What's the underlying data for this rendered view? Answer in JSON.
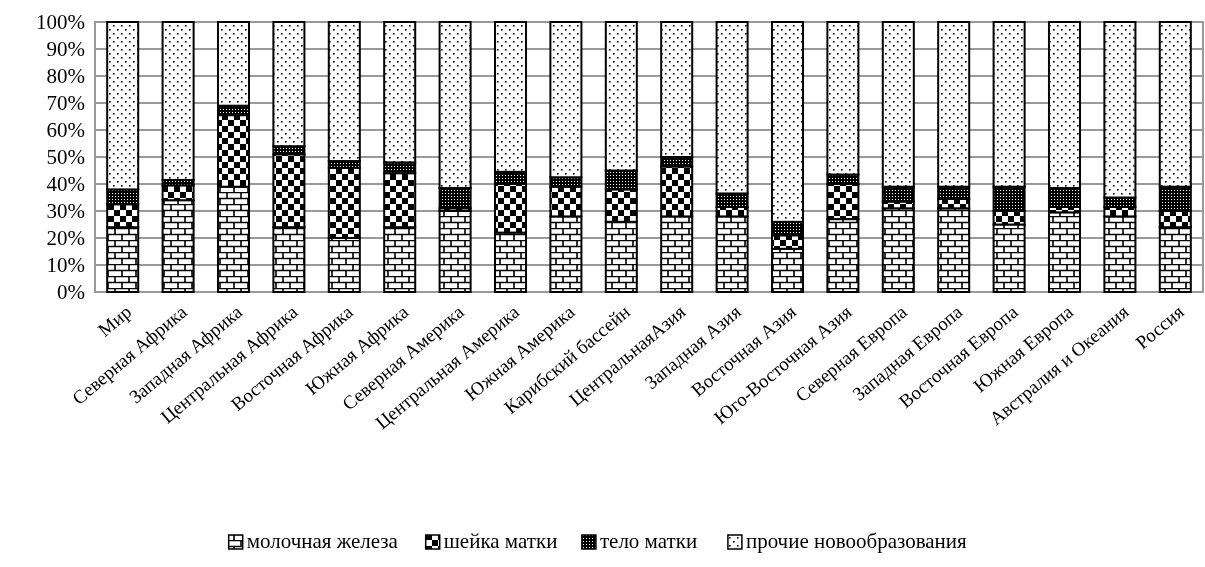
{
  "chart_data": {
    "type": "bar",
    "stacked": true,
    "categories": [
      "Мир",
      "Северная Африка",
      "Западная Африка",
      "Центральная Африка",
      "Восточная Африка",
      "Южная Африка",
      "Северная Америка",
      "Центральная Америка",
      "Южная Америка",
      "Карибский бассейн",
      "ЦентральнаяАзия",
      "Западная Азия",
      "Восточная Азия",
      "Юго-Восточная Азия",
      "Северная Европа",
      "Западная Европа",
      "Восточная Европа",
      "Южная Европа",
      "Австралия и Океания",
      "Россия"
    ],
    "series": [
      {
        "name": "молочная железа",
        "color": "#000000",
        "values": [
          24,
          34,
          39,
          24,
          20,
          24,
          30,
          22,
          28,
          26,
          28,
          28,
          16,
          27,
          31,
          31,
          25,
          29.5,
          28,
          24
        ]
      },
      {
        "name": "шейка матки",
        "color": "#000000",
        "values": [
          8.5,
          5.5,
          26.5,
          27,
          26,
          20,
          1,
          18,
          11,
          12,
          18.5,
          3.5,
          5,
          13,
          2.5,
          3.5,
          5,
          2,
          3.5,
          6
        ]
      },
      {
        "name": "тело матки",
        "color": "#000000",
        "values": [
          5.5,
          2,
          3.5,
          3,
          2.5,
          4,
          7.5,
          4.5,
          3.5,
          7,
          3.5,
          5,
          5,
          3.5,
          5.5,
          4.5,
          9,
          7,
          3.5,
          9
        ]
      },
      {
        "name": "прочие новообразования",
        "color": "#000000",
        "values": [
          62,
          58.5,
          31,
          46,
          51.5,
          52,
          61.5,
          55.5,
          57.5,
          55,
          50,
          63.5,
          74,
          56.5,
          61,
          61,
          61,
          61.5,
          65,
          61
        ]
      }
    ],
    "ylim": [
      0,
      100
    ],
    "yticks": [
      {
        "value": 0,
        "label": "0%"
      },
      {
        "value": 10,
        "label": "10%"
      },
      {
        "value": 20,
        "label": "20%"
      },
      {
        "value": 30,
        "label": "30%"
      },
      {
        "value": 40,
        "label": "40%"
      },
      {
        "value": 50,
        "label": "50%"
      },
      {
        "value": 60,
        "label": "60%"
      },
      {
        "value": 70,
        "label": "70%"
      },
      {
        "value": 80,
        "label": "80%"
      },
      {
        "value": 90,
        "label": "90%"
      },
      {
        "value": 100,
        "label": "100%"
      }
    ],
    "grid": "y",
    "legend": "bottom"
  }
}
